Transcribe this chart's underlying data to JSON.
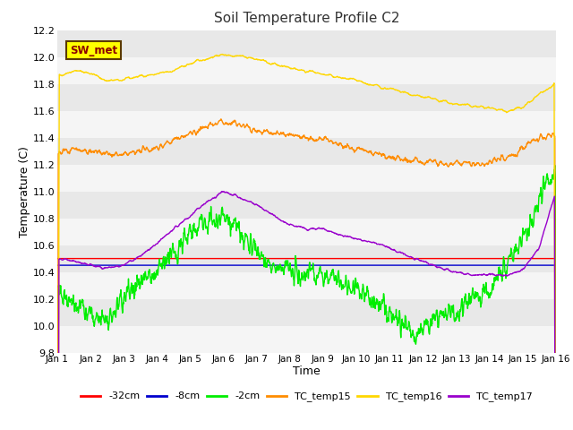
{
  "title": "Soil Temperature Profile C2",
  "xlabel": "Time",
  "ylabel": "Temperature (C)",
  "ylim": [
    9.8,
    12.2
  ],
  "xlim": [
    0,
    15
  ],
  "xtick_positions": [
    0,
    1,
    2,
    3,
    4,
    5,
    6,
    7,
    8,
    9,
    10,
    11,
    12,
    13,
    14,
    15
  ],
  "xtick_labels": [
    "Jan 1",
    "Jan 2",
    "Jan 3",
    "Jan 4",
    "Jan 5",
    "Jan 6",
    "Jan 7",
    "Jan 8",
    "Jan 9",
    "Jan 10",
    "Jan 11",
    "Jan 12",
    "Jan 13",
    "Jan 14",
    "Jan 15",
    "Jan 16"
  ],
  "ytick_values": [
    9.8,
    10.0,
    10.2,
    10.4,
    10.6,
    10.8,
    11.0,
    11.2,
    11.4,
    11.6,
    11.8,
    12.0,
    12.2
  ],
  "annotation_text": "SW_met",
  "annotation_bg": "#ffff00",
  "annotation_border": "#5a3a00",
  "annotation_text_color": "#8B0000",
  "fig_bg_color": "#ffffff",
  "plot_bg_color": "#e8e8e8",
  "stripe_color": "#f5f5f5",
  "series_colors": {
    "m32cm": "#ff0000",
    "m8cm": "#0000cd",
    "m2cm": "#00ee00",
    "TC_temp15": "#ff8c00",
    "TC_temp16": "#ffd700",
    "TC_temp17": "#9900cc"
  },
  "legend_labels": [
    "-32cm",
    "-8cm",
    "-2cm",
    "TC_temp15",
    "TC_temp16",
    "TC_temp17"
  ]
}
